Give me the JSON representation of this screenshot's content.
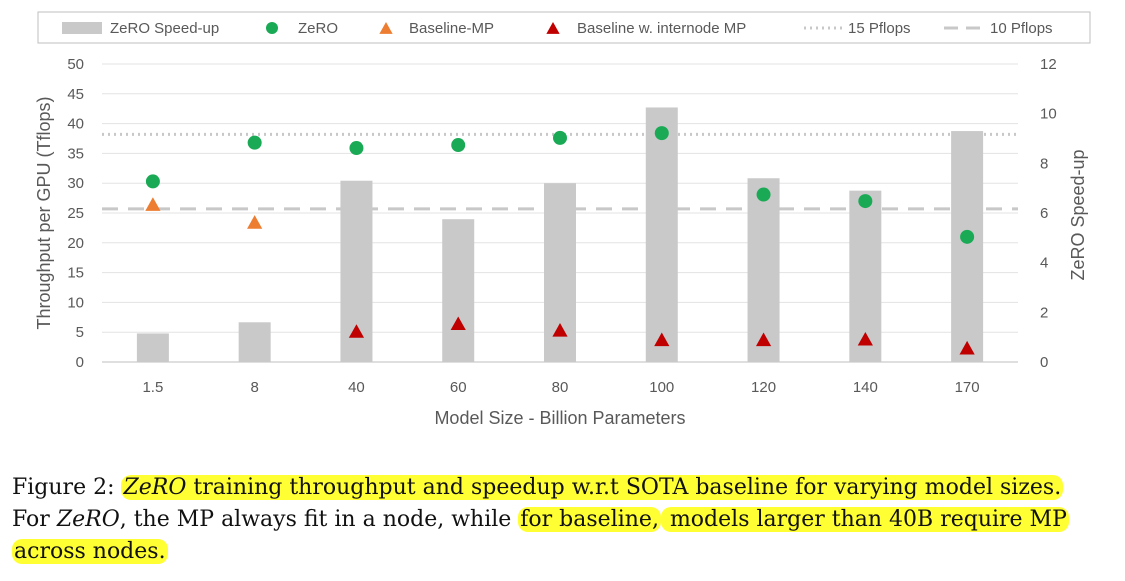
{
  "chart_data": {
    "type": "bar+scatter",
    "categories": [
      "1.5",
      "8",
      "40",
      "60",
      "80",
      "100",
      "120",
      "140",
      "170"
    ],
    "xlabel": "Model Size - Billion Parameters",
    "ylabel": "Throughput per GPU (Tflops)",
    "y2label": "ZeRO Speed-up",
    "ylim": [
      0,
      50
    ],
    "yticks": [
      0,
      5,
      10,
      15,
      20,
      25,
      30,
      35,
      40,
      45,
      50
    ],
    "y2lim": [
      0,
      12
    ],
    "y2ticks": [
      0,
      2,
      4,
      6,
      8,
      10,
      12
    ],
    "grid": true,
    "legend_position": "top",
    "bars": {
      "name": "ZeRO Speed-up",
      "axis": "right",
      "color": "#c9c9c9",
      "values": [
        1.15,
        1.6,
        7.3,
        5.75,
        7.2,
        10.25,
        7.4,
        6.9,
        9.3
      ]
    },
    "series": [
      {
        "name": "ZeRO",
        "marker": "circle",
        "color": "#1aaa55",
        "values": [
          30.3,
          36.8,
          35.9,
          36.4,
          37.6,
          38.4,
          28.1,
          27.0,
          21.0
        ]
      },
      {
        "name": "Baseline-MP",
        "marker": "triangle",
        "color": "#ed7d31",
        "values": [
          26.3,
          23.3,
          null,
          null,
          null,
          null,
          null,
          null,
          null
        ]
      },
      {
        "name": "Baseline w. internode MP",
        "marker": "triangle",
        "color": "#c00000",
        "values": [
          null,
          null,
          5.0,
          6.3,
          5.2,
          3.6,
          3.6,
          3.7,
          2.2
        ]
      }
    ],
    "reference_lines": [
      {
        "name": "15 Pflops",
        "style": "dotted",
        "value": 38.2
      },
      {
        "name": "10 Pflops",
        "style": "dashed",
        "value": 25.7
      }
    ]
  },
  "caption": {
    "prefix": "Figure 2: ",
    "zero1": "ZeRO",
    "part1": " training throughput and speedup w.r.t SOTA baseline for varying model sizes.",
    "part2_a": "For ",
    "zero2": "ZeRO",
    "part2_b": ", the MP always fit in a node, while ",
    "hl2": "for baseline,",
    "hl3": " models larger than 40B require MP",
    "hl4": "across nodes."
  }
}
